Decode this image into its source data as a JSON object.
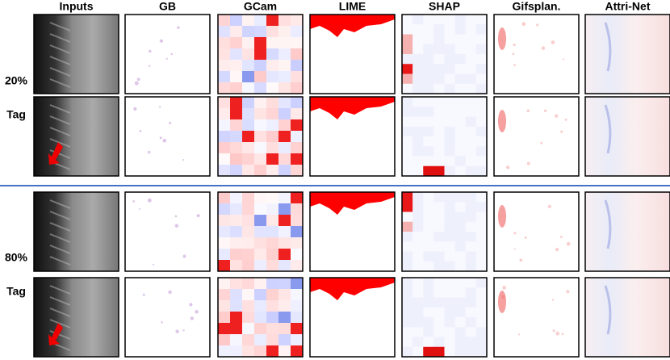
{
  "header": {
    "columns": [
      "Inputs",
      "GB",
      "GCam",
      "LIME",
      "SHAP",
      "Gifsplan.",
      "Attri-Net"
    ]
  },
  "rows": [
    {
      "label": "20%"
    },
    {
      "label": "Tag"
    },
    {
      "label": "80%"
    },
    {
      "label": "Tag"
    }
  ]
}
